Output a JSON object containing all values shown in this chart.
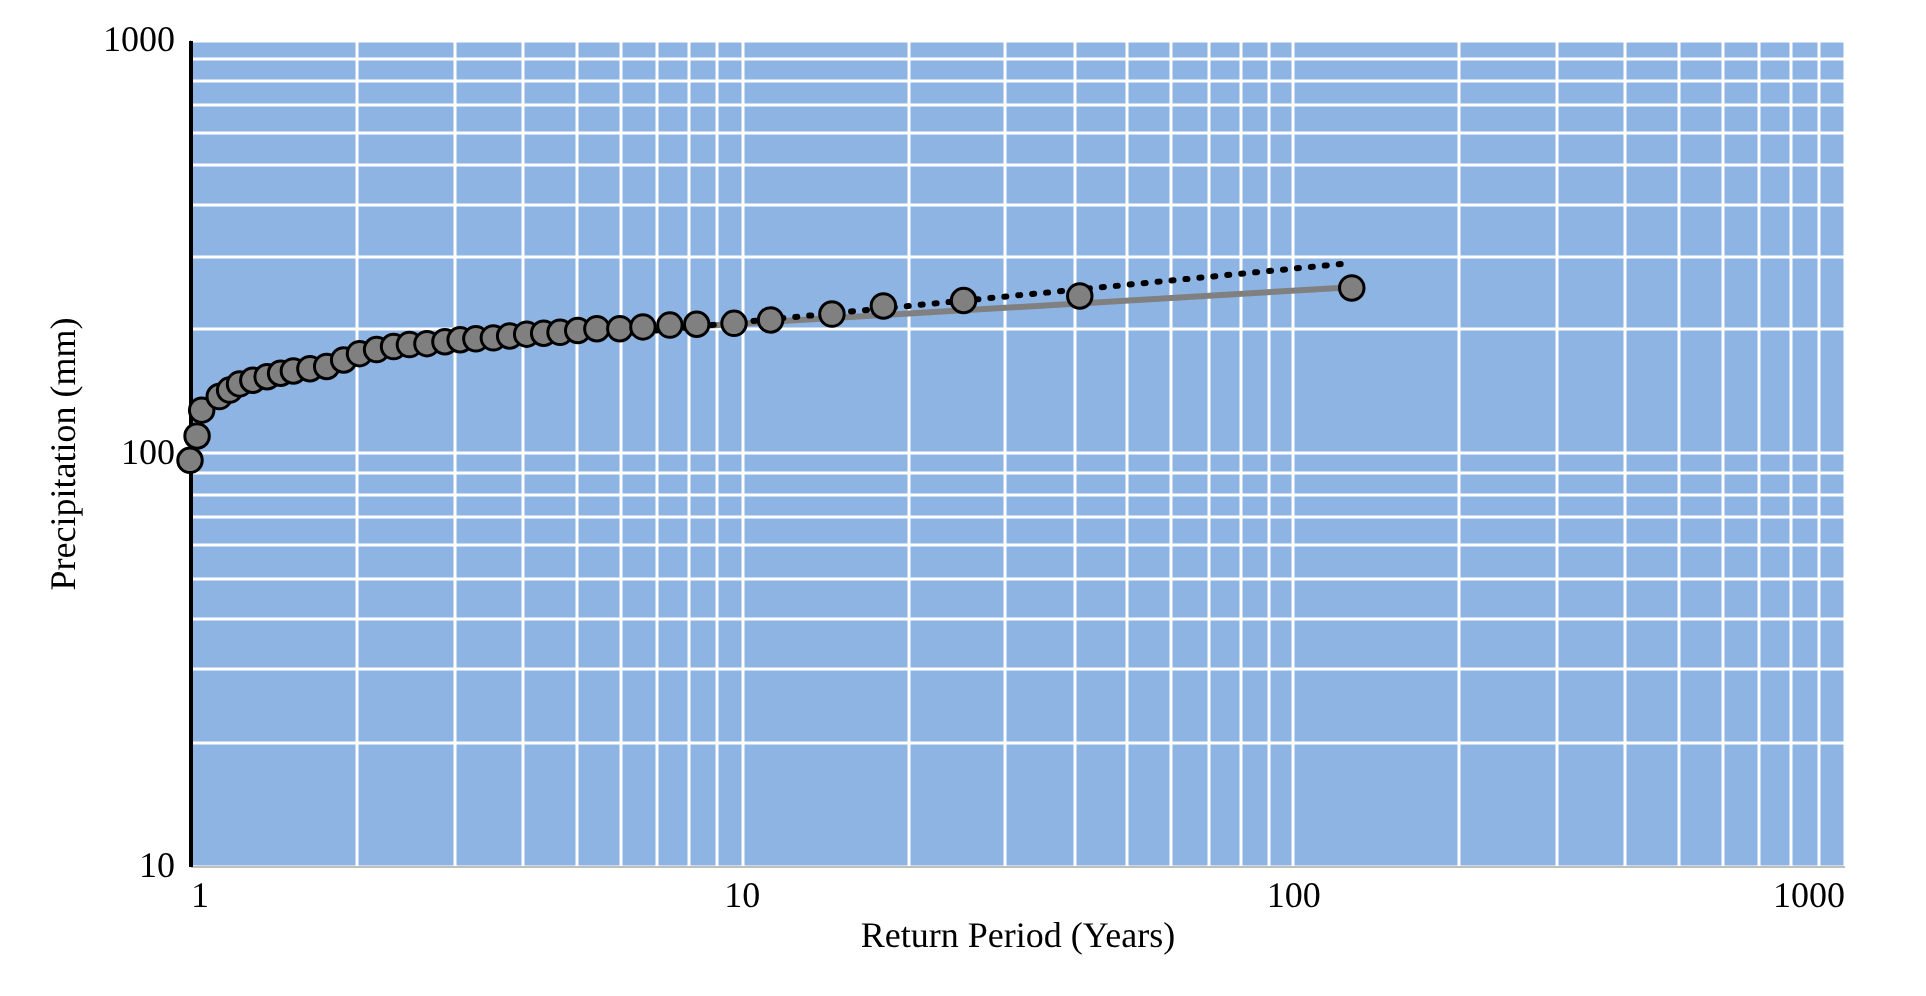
{
  "chart_data": {
    "type": "scatter",
    "xlabel": "Return Period (Years)",
    "ylabel": "Precipitation (mm)",
    "log": "xy",
    "grid": true,
    "xlim": [
      1,
      1000
    ],
    "ylim": [
      10,
      1000
    ],
    "xticks": [
      1,
      {
        "value": 2,
        "label": null
      },
      {
        "value": 3,
        "label": null
      },
      {
        "value": 4,
        "label": null
      },
      {
        "value": 5,
        "label": null
      },
      {
        "value": 6,
        "label": null
      },
      {
        "value": 7,
        "label": null
      },
      {
        "value": 8,
        "label": null
      },
      {
        "value": 9,
        "label": null
      },
      10,
      {
        "value": 20,
        "label": null
      },
      {
        "value": 30,
        "label": null
      },
      {
        "value": 40,
        "label": null
      },
      {
        "value": 50,
        "label": null
      },
      {
        "value": 60,
        "label": null
      },
      {
        "value": 70,
        "label": null
      },
      {
        "value": 80,
        "label": null
      },
      {
        "value": 90,
        "label": null
      },
      100,
      {
        "value": 200,
        "label": null
      },
      {
        "value": 300,
        "label": null
      },
      {
        "value": 400,
        "label": null
      },
      {
        "value": 500,
        "label": null
      },
      {
        "value": 600,
        "label": null
      },
      {
        "value": 700,
        "label": null
      },
      {
        "value": 800,
        "label": null
      },
      {
        "value": 900,
        "label": null
      },
      1000
    ],
    "yticks": [
      10,
      {
        "value": 20,
        "label": null
      },
      {
        "value": 30,
        "label": null
      },
      {
        "value": 40,
        "label": null
      },
      {
        "value": 50,
        "label": null
      },
      {
        "value": 60,
        "label": null
      },
      {
        "value": 70,
        "label": null
      },
      {
        "value": 80,
        "label": null
      },
      {
        "value": 90,
        "label": null
      },
      100,
      {
        "value": 200,
        "label": null
      },
      {
        "value": 300,
        "label": null
      },
      {
        "value": 400,
        "label": null
      },
      {
        "value": 500,
        "label": null
      },
      {
        "value": 600,
        "label": null
      },
      {
        "value": 700,
        "label": null
      },
      {
        "value": 800,
        "label": null
      },
      {
        "value": 900,
        "label": null
      },
      1000
    ],
    "series": [
      {
        "type": "line",
        "color": "#808080",
        "line_style": "solid",
        "marker": "none",
        "x": [
          7,
          128
        ],
        "values": [
          200,
          252
        ]
      },
      {
        "type": "line",
        "color": "#000000",
        "line_style": "dotted",
        "marker": "none",
        "x": [
          7,
          123
        ],
        "values": [
          198,
          287
        ]
      },
      {
        "color": "#808080",
        "marker": "circle",
        "x": [
          1.0,
          1.03,
          1.05,
          1.13,
          1.18,
          1.23,
          1.3,
          1.38,
          1.46,
          1.54,
          1.65,
          1.77,
          1.9,
          2.03,
          2.18,
          2.34,
          2.5,
          2.69,
          2.9,
          3.09,
          3.3,
          3.55,
          3.8,
          4.08,
          4.38,
          4.69,
          5.05,
          5.47,
          6.02,
          6.63,
          7.42,
          8.3,
          9.7,
          11.3,
          14.6,
          18.1,
          25.3,
          41.1,
          128
        ],
        "values": [
          96,
          110,
          127,
          137,
          142,
          147,
          150,
          153,
          156,
          158,
          160,
          162,
          168,
          174,
          178,
          181,
          183,
          184,
          186,
          188,
          189,
          190,
          192,
          194,
          195,
          196,
          198,
          200,
          200,
          202,
          204,
          205,
          206,
          210,
          217,
          227,
          234,
          240,
          251
        ]
      }
    ]
  }
}
